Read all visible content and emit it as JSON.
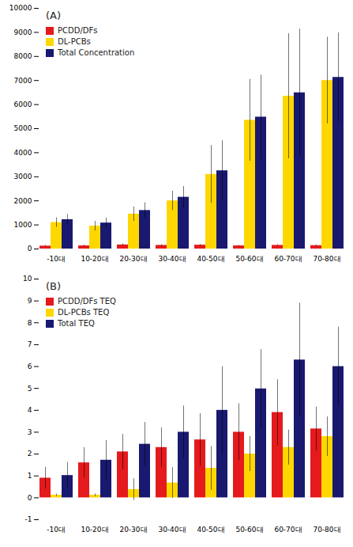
{
  "chart_data": [
    {
      "type": "bar",
      "annotations": [
        "(A)"
      ],
      "categories": [
        "-10대",
        "10-20대",
        "20-30대",
        "30-40대",
        "40-50대",
        "50-60대",
        "60-70대",
        "70-80대"
      ],
      "series": [
        {
          "name": "PCDD/DFs",
          "color": "#e41a1c",
          "values": [
            120,
            130,
            170,
            150,
            160,
            130,
            150,
            140
          ],
          "errors": [
            30,
            30,
            40,
            30,
            30,
            20,
            30,
            25
          ]
        },
        {
          "name": "DL-PCBs",
          "color": "#ffd700",
          "values": [
            1100,
            950,
            1450,
            2000,
            3100,
            5350,
            6350,
            7000
          ],
          "errors": [
            200,
            200,
            300,
            400,
            1200,
            1700,
            2600,
            1800
          ]
        },
        {
          "name": "Total Concentration",
          "color": "#191970",
          "values": [
            1220,
            1080,
            1600,
            2150,
            3250,
            5480,
            6490,
            7130
          ],
          "errors": [
            220,
            210,
            320,
            450,
            1250,
            1750,
            2650,
            1850
          ]
        }
      ],
      "ylim": [
        0,
        10000
      ],
      "yticks": [
        0,
        1000,
        2000,
        3000,
        4000,
        5000,
        6000,
        7000,
        8000,
        9000,
        10000
      ],
      "legend": "upper left",
      "grid": false
    },
    {
      "type": "bar",
      "annotations": [
        "(B)"
      ],
      "categories": [
        "-10대",
        "10-20대",
        "20-30대",
        "30-40대",
        "40-50대",
        "50-60대",
        "60-70대",
        "70-80대"
      ],
      "series": [
        {
          "name": "PCDD/DFs TEQ",
          "color": "#e41a1c",
          "values": [
            0.9,
            1.6,
            2.1,
            2.3,
            2.65,
            3.0,
            3.9,
            3.15
          ],
          "errors": [
            0.5,
            0.7,
            0.8,
            0.9,
            1.2,
            1.3,
            1.5,
            1.0
          ]
        },
        {
          "name": "DL-PCBs TEQ",
          "color": "#ffd700",
          "values": [
            0.12,
            0.12,
            0.38,
            0.68,
            1.35,
            2.0,
            2.3,
            2.8
          ],
          "errors": [
            0.05,
            0.06,
            0.5,
            0.7,
            1.0,
            0.8,
            0.8,
            0.9
          ]
        },
        {
          "name": "Total TEQ",
          "color": "#191970",
          "values": [
            1.02,
            1.72,
            2.45,
            3.0,
            4.0,
            4.98,
            6.3,
            6.0
          ],
          "errors": [
            0.6,
            0.9,
            1.0,
            1.2,
            2.0,
            1.8,
            2.6,
            1.8
          ]
        }
      ],
      "ylim": [
        -1,
        10
      ],
      "yticks": [
        -1,
        0,
        1,
        2,
        3,
        4,
        5,
        6,
        7,
        8,
        9,
        10
      ],
      "legend": "upper left",
      "grid": false
    }
  ]
}
